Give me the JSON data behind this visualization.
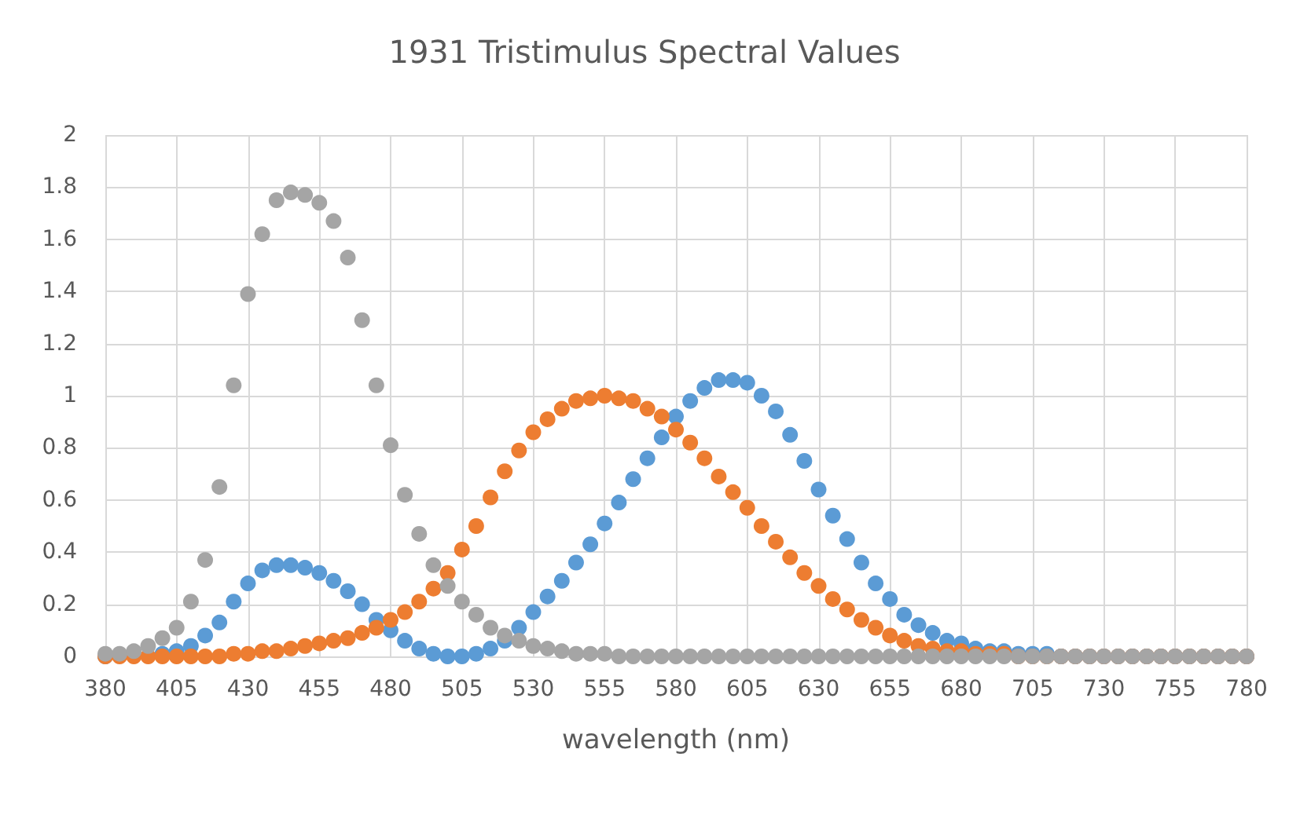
{
  "chart_data": {
    "type": "scatter",
    "title": "1931 Tristimulus Spectral Values",
    "xlabel": "wavelength (nm)",
    "x": [
      380,
      385,
      390,
      395,
      400,
      405,
      410,
      415,
      420,
      425,
      430,
      435,
      440,
      445,
      450,
      455,
      460,
      465,
      470,
      475,
      480,
      485,
      490,
      495,
      500,
      505,
      510,
      515,
      520,
      525,
      530,
      535,
      540,
      545,
      550,
      555,
      560,
      565,
      570,
      575,
      580,
      585,
      590,
      595,
      600,
      605,
      610,
      615,
      620,
      625,
      630,
      635,
      640,
      645,
      650,
      655,
      660,
      665,
      670,
      675,
      680,
      685,
      690,
      695,
      700,
      705,
      710,
      715,
      720,
      725,
      730,
      735,
      740,
      745,
      750,
      755,
      760,
      765,
      770,
      775,
      780
    ],
    "series": [
      {
        "color": "#5b9bd5",
        "values": [
          0,
          null,
          null,
          null,
          0.01,
          0.02,
          0.04,
          0.08,
          0.13,
          0.21,
          0.28,
          0.33,
          0.35,
          0.35,
          0.34,
          0.32,
          0.29,
          0.25,
          0.2,
          0.14,
          0.1,
          0.06,
          0.03,
          0.01,
          0,
          0,
          0.01,
          0.03,
          0.06,
          0.11,
          0.17,
          0.23,
          0.29,
          0.36,
          0.43,
          0.51,
          0.59,
          0.68,
          0.76,
          0.84,
          0.92,
          0.98,
          1.03,
          1.06,
          1.06,
          1.05,
          1,
          0.94,
          0.85,
          0.75,
          0.64,
          0.54,
          0.45,
          0.36,
          0.28,
          0.22,
          0.16,
          0.12,
          0.09,
          0.06,
          0.05,
          0.03,
          0.02,
          0.02,
          0.01,
          0.01,
          0.01,
          0,
          0,
          0,
          0,
          0,
          0,
          0,
          0,
          0,
          0,
          0,
          0,
          0,
          0
        ]
      },
      {
        "color": "#ed7d31",
        "values": [
          0,
          0,
          0,
          0,
          0,
          0,
          0,
          0,
          0,
          0.01,
          0.01,
          0.02,
          0.02,
          0.03,
          0.04,
          0.05,
          0.06,
          0.07,
          0.09,
          0.11,
          0.14,
          0.17,
          0.21,
          0.26,
          0.32,
          0.41,
          0.5,
          0.61,
          0.71,
          0.79,
          0.86,
          0.91,
          0.95,
          0.98,
          0.99,
          1,
          0.99,
          0.98,
          0.95,
          0.92,
          0.87,
          0.82,
          0.76,
          0.69,
          0.63,
          0.57,
          0.5,
          0.44,
          0.38,
          0.32,
          0.27,
          0.22,
          0.18,
          0.14,
          0.11,
          0.08,
          0.06,
          0.04,
          0.03,
          0.02,
          0.02,
          0.01,
          0.01,
          0.01,
          0,
          0,
          0,
          0,
          0,
          0,
          0,
          0,
          0,
          0,
          0,
          0,
          0,
          0,
          0,
          0,
          0
        ]
      },
      {
        "color": "#a5a5a5",
        "values": [
          0.01,
          0.01,
          0.02,
          0.04,
          0.07,
          0.11,
          0.21,
          0.37,
          0.65,
          1.04,
          1.39,
          1.62,
          1.75,
          1.78,
          1.77,
          1.74,
          1.67,
          1.53,
          1.29,
          1.04,
          0.81,
          0.62,
          0.47,
          0.35,
          0.27,
          0.21,
          0.16,
          0.11,
          0.08,
          0.06,
          0.04,
          0.03,
          0.02,
          0.01,
          0.01,
          0.01,
          0,
          0,
          0,
          0,
          0,
          0,
          0,
          0,
          0,
          0,
          0,
          0,
          0,
          0,
          0,
          0,
          0,
          0,
          0,
          0,
          0,
          0,
          0,
          0,
          0,
          0,
          0,
          0,
          0,
          0,
          0,
          0,
          0,
          0,
          0,
          0,
          0,
          0,
          0,
          0,
          0,
          0,
          0,
          0,
          0
        ]
      }
    ],
    "xlim": [
      380,
      780
    ],
    "xticks": [
      380,
      405,
      430,
      455,
      480,
      505,
      530,
      555,
      580,
      605,
      630,
      655,
      680,
      705,
      730,
      755,
      780
    ],
    "ylim": [
      0,
      2
    ],
    "yticks": [
      0,
      0.2,
      0.4,
      0.6,
      0.8,
      1,
      1.2,
      1.4,
      1.6,
      1.8,
      2
    ],
    "grid": true,
    "marker": "circle"
  }
}
